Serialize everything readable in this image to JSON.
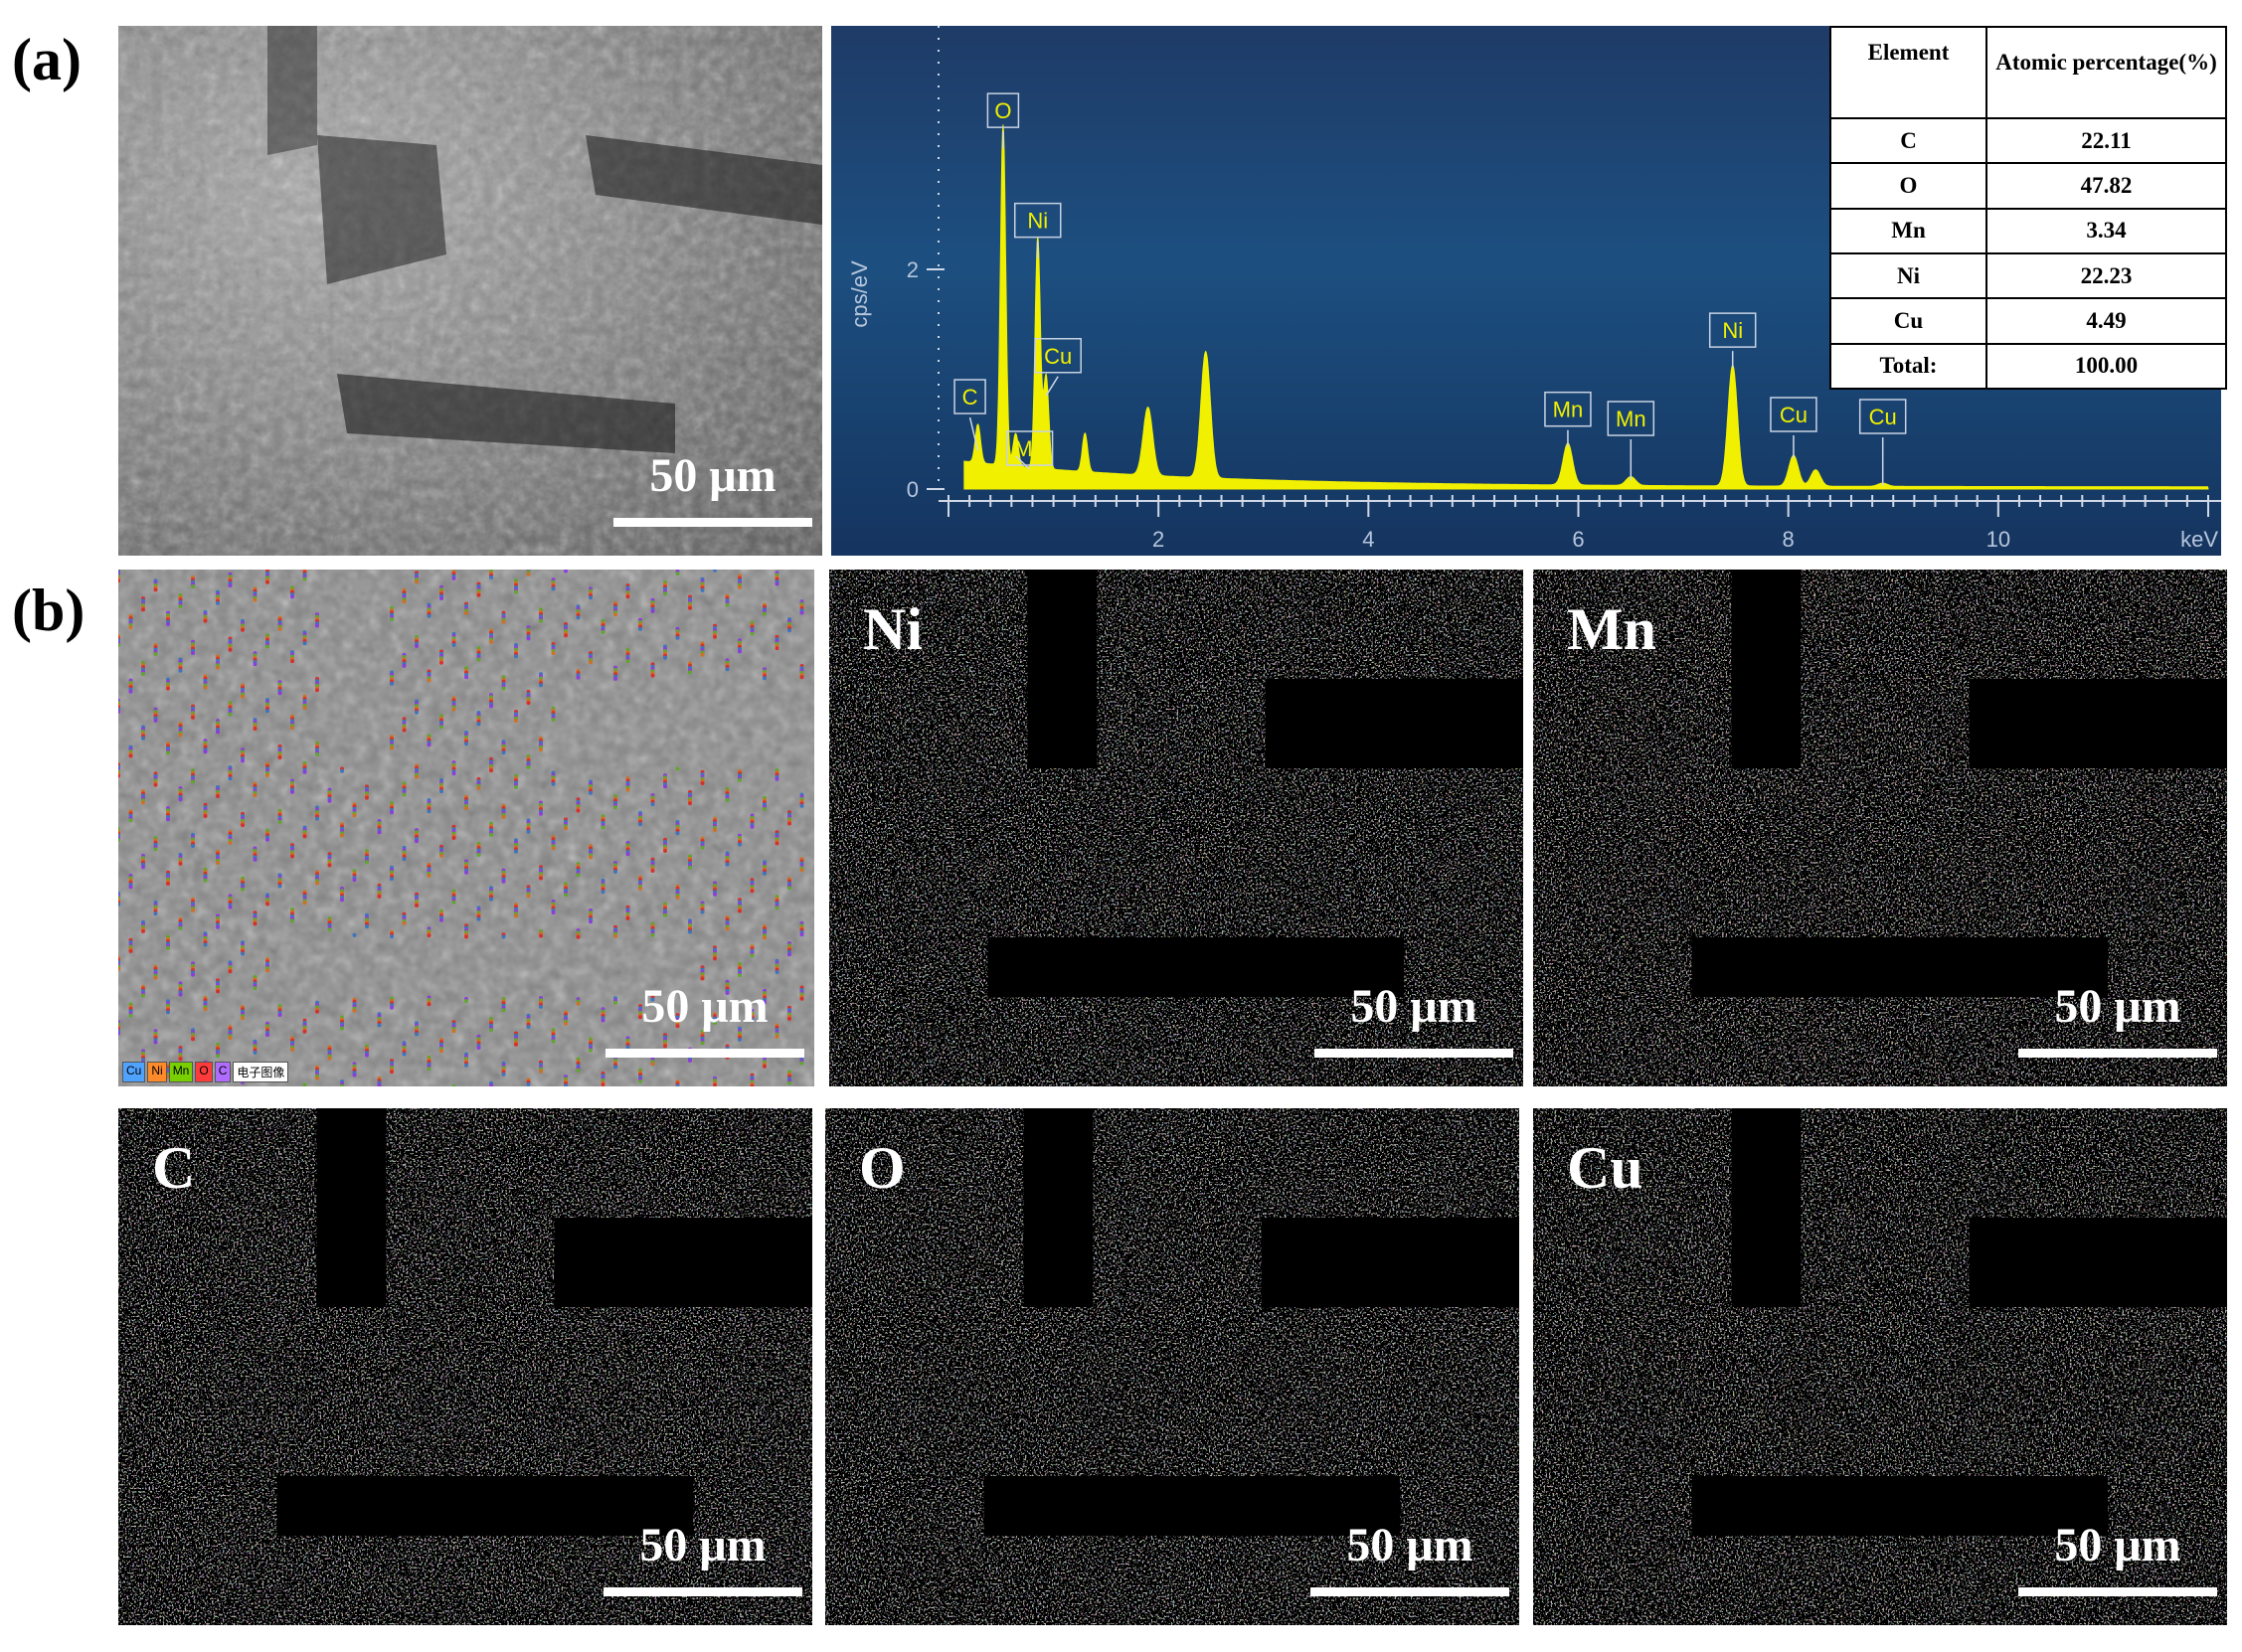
{
  "panel_labels": [
    "(a)",
    "(b)"
  ],
  "scale_bar_label": "50 μm",
  "sem_legend": [
    "Cu",
    "Ni",
    "Mn",
    "O",
    "C",
    "电子图像"
  ],
  "maps": [
    {
      "id": "sem-map",
      "label": "",
      "color": "#cccccc"
    },
    {
      "id": "ni-map",
      "label": "Ni",
      "color": "#d86a12"
    },
    {
      "id": "mn-map",
      "label": "Mn",
      "color": "#58a81c"
    },
    {
      "id": "c-map",
      "label": "C",
      "color": "#8a2ee6"
    },
    {
      "id": "o-map",
      "label": "O",
      "color": "#e0201a"
    },
    {
      "id": "cu-map",
      "label": "Cu",
      "color": "#2f6fc4"
    }
  ],
  "chart_data": {
    "type": "line",
    "xlabel": "keV",
    "ylabel": "cps/eV",
    "xlim": [
      0,
      12
    ],
    "ylim": [
      0,
      4
    ],
    "x_ticks": [
      "2",
      "4",
      "6",
      "8",
      "10"
    ],
    "y_ticks": [
      "0",
      "2"
    ],
    "series_color": "#f0f000",
    "peaks": [
      {
        "x": 0.28,
        "y": 0.35,
        "label": "C"
      },
      {
        "x": 0.52,
        "y": 3.1,
        "label": "O"
      },
      {
        "x": 0.64,
        "y": 0.3,
        "label": "Mn"
      },
      {
        "x": 0.85,
        "y": 2.1,
        "label": "Ni"
      },
      {
        "x": 0.93,
        "y": 0.85,
        "label": "Cu"
      },
      {
        "x": 1.3,
        "y": 0.35,
        "label": ""
      },
      {
        "x": 1.9,
        "y": 0.62,
        "label": ""
      },
      {
        "x": 2.45,
        "y": 1.15,
        "label": ""
      },
      {
        "x": 5.9,
        "y": 0.38,
        "label": "Mn"
      },
      {
        "x": 6.5,
        "y": 0.08,
        "label": "Mn"
      },
      {
        "x": 7.47,
        "y": 1.1,
        "label": "Ni"
      },
      {
        "x": 8.05,
        "y": 0.28,
        "label": "Cu"
      },
      {
        "x": 8.26,
        "y": 0.15,
        "label": ""
      },
      {
        "x": 8.9,
        "y": 0.03,
        "label": "Cu"
      }
    ]
  },
  "table": {
    "headers": [
      "Element",
      "Atomic percentage(%)"
    ],
    "rows": [
      [
        "C",
        "22.11"
      ],
      [
        "O",
        "47.82"
      ],
      [
        "Mn",
        "3.34"
      ],
      [
        "Ni",
        "22.23"
      ],
      [
        "Cu",
        "4.49"
      ],
      [
        "Total:",
        "100.00"
      ]
    ]
  }
}
